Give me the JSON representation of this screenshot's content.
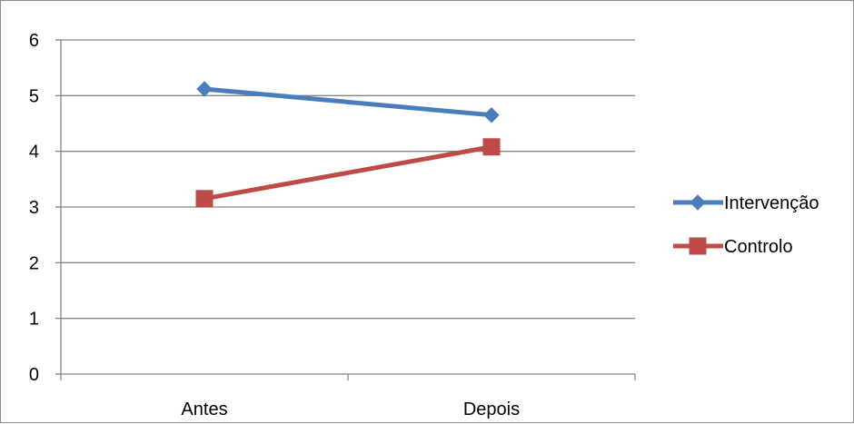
{
  "chart_data": {
    "type": "line",
    "title": "",
    "xlabel": "",
    "ylabel": "",
    "categories": [
      "Antes",
      "Depois"
    ],
    "ylim": [
      0,
      6
    ],
    "yticks": [
      0,
      1,
      2,
      3,
      4,
      5,
      6
    ],
    "grid": "horizontal",
    "legend_position": "right",
    "series": [
      {
        "name": "Intervenção",
        "values": [
          5.12,
          4.65
        ],
        "color": "#4a7ebb",
        "marker": "diamond"
      },
      {
        "name": "Controlo",
        "values": [
          3.15,
          4.08
        ],
        "color": "#be4b48",
        "marker": "square"
      }
    ]
  }
}
